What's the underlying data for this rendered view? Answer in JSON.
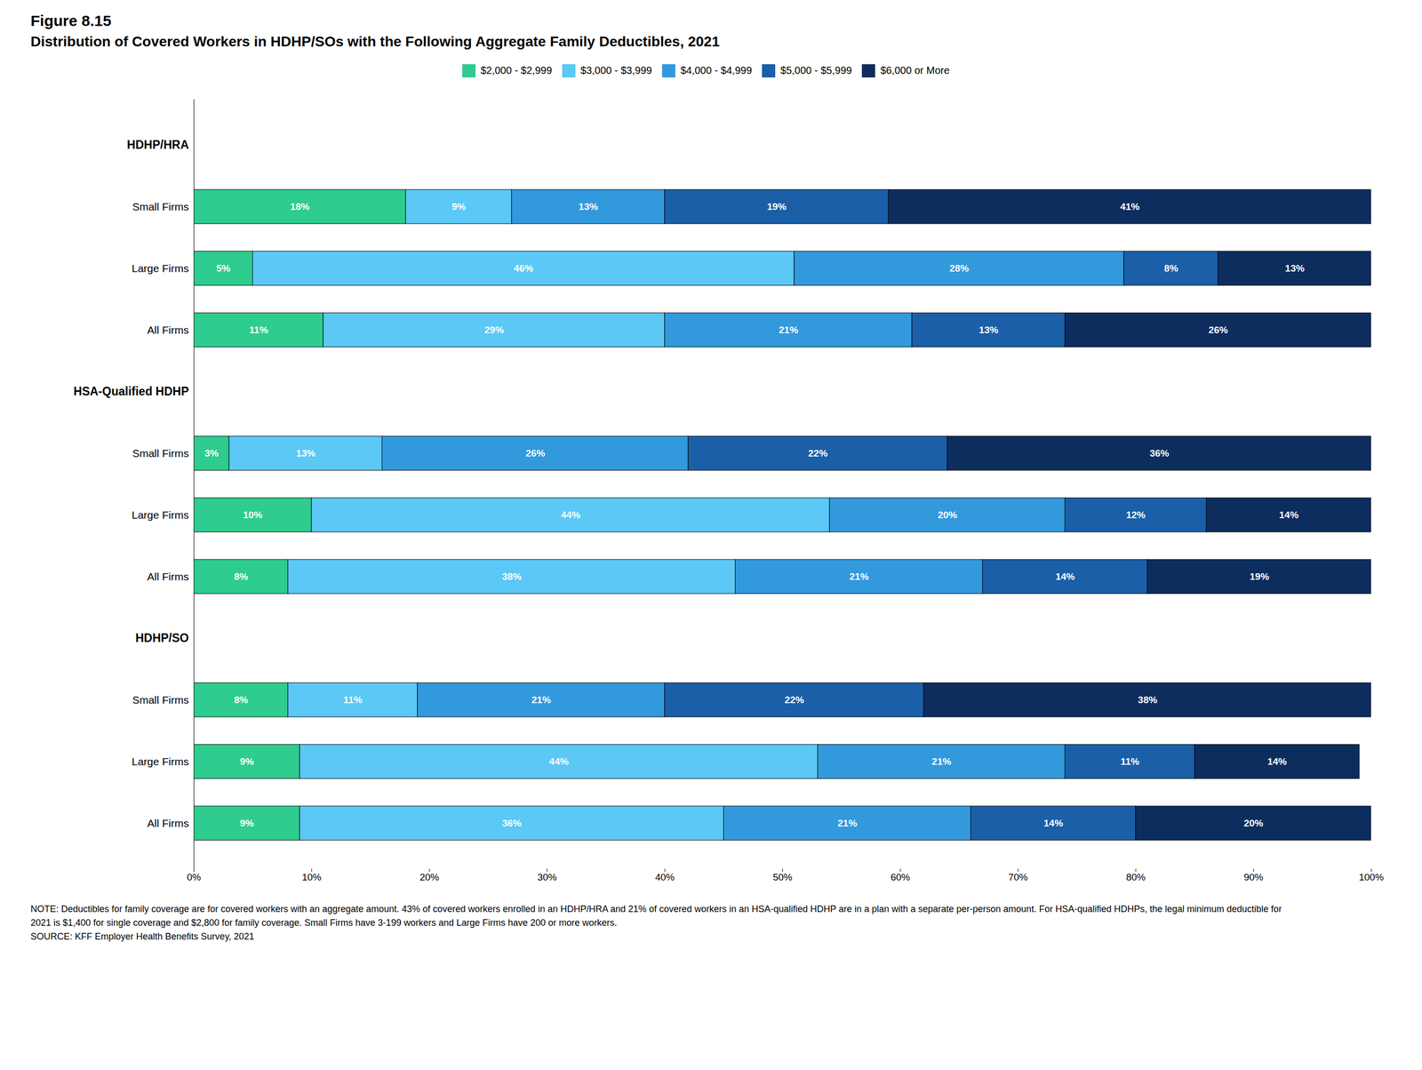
{
  "chart_data": {
    "type": "bar",
    "orientation": "horizontal",
    "stacked": true,
    "data_labels": true,
    "grid": false,
    "legend": "top",
    "title": "Figure 8.15",
    "subtitle": "Distribution of Covered Workers in HDHP/SOs with the Following Aggregate Family Deductibles, 2021",
    "categories": [
      "HDHP/HRA",
      "Small Firms",
      "Large Firms",
      "All Firms",
      "HSA-Qualified HDHP",
      "Small Firms",
      "Large Firms",
      "All Firms",
      "HDHP/SO",
      "Small Firms",
      "Large Firms",
      "All Firms"
    ],
    "series": [
      {
        "name": "$2,000 - $2,999",
        "color": "#2ecc8e",
        "values": [
          0,
          18,
          5,
          11,
          0,
          3,
          10,
          8,
          0,
          8,
          9,
          9
        ],
        "value_labels": [
          null,
          "18%",
          "5%",
          "11%",
          null,
          "3%",
          "10%",
          "8%",
          null,
          "8%",
          "9%",
          "9%"
        ]
      },
      {
        "name": "$3,000 - $3,999",
        "color": "#5bc8f5",
        "values": [
          0,
          9,
          46,
          29,
          0,
          13,
          44,
          38,
          0,
          11,
          44,
          36
        ],
        "value_labels": [
          null,
          "9%",
          "46%",
          "29%",
          null,
          "13%",
          "44%",
          "38%",
          null,
          "11%",
          "44%",
          "36%"
        ]
      },
      {
        "name": "$4,000 - $4,999",
        "color": "#3399dd",
        "values": [
          0,
          13,
          28,
          21,
          0,
          26,
          20,
          21,
          0,
          21,
          21,
          21
        ],
        "value_labels": [
          null,
          "13%",
          "28%",
          "21%",
          null,
          "26%",
          "20%",
          "21%",
          null,
          "21%",
          "21%",
          "21%"
        ]
      },
      {
        "name": "$5,000 - $5,999",
        "color": "#1a5fa8",
        "values": [
          0,
          19,
          8,
          13,
          0,
          22,
          12,
          14,
          0,
          22,
          11,
          14
        ],
        "value_labels": [
          null,
          "19%",
          "8%",
          "13%",
          null,
          "22%",
          "12%",
          "14%",
          null,
          "22%",
          "11%",
          "14%"
        ]
      },
      {
        "name": "$6,000 or More",
        "color": "#0d2d5e",
        "values": [
          0,
          41,
          13,
          26,
          0,
          36,
          14,
          19,
          0,
          38,
          14,
          20
        ],
        "value_labels": [
          null,
          "41%",
          "13%",
          "26%",
          null,
          "36%",
          "14%",
          "19%",
          null,
          "38%",
          "14%",
          "20%"
        ]
      }
    ],
    "xlim": [
      0,
      100
    ],
    "xticks": [
      {
        "value": 0,
        "label": "0%"
      },
      {
        "value": 10,
        "label": "10%"
      },
      {
        "value": 20,
        "label": "20%"
      },
      {
        "value": 30,
        "label": "30%"
      },
      {
        "value": 40,
        "label": "40%"
      },
      {
        "value": 50,
        "label": "50%"
      },
      {
        "value": 60,
        "label": "60%"
      },
      {
        "value": 70,
        "label": "70%"
      },
      {
        "value": 80,
        "label": "80%"
      },
      {
        "value": 90,
        "label": "90%"
      },
      {
        "value": 100,
        "label": "100%"
      }
    ],
    "annotations": [
      "NOTE: Deductibles for family coverage are for covered workers with an aggregate amount. 43% of covered workers enrolled in an HDHP/HRA and 21% of covered workers in an HSA-qualified HDHP are in a plan with a separate per-person amount. For HSA-qualified HDHPs, the legal minimum deductible for",
      "2021 is $1,400 for single coverage and $2,800 for family coverage. Small Firms have 3-199 workers and Large Firms have 200 or more workers.",
      "SOURCE: KFF Employer Health Benefits Survey, 2021"
    ]
  }
}
